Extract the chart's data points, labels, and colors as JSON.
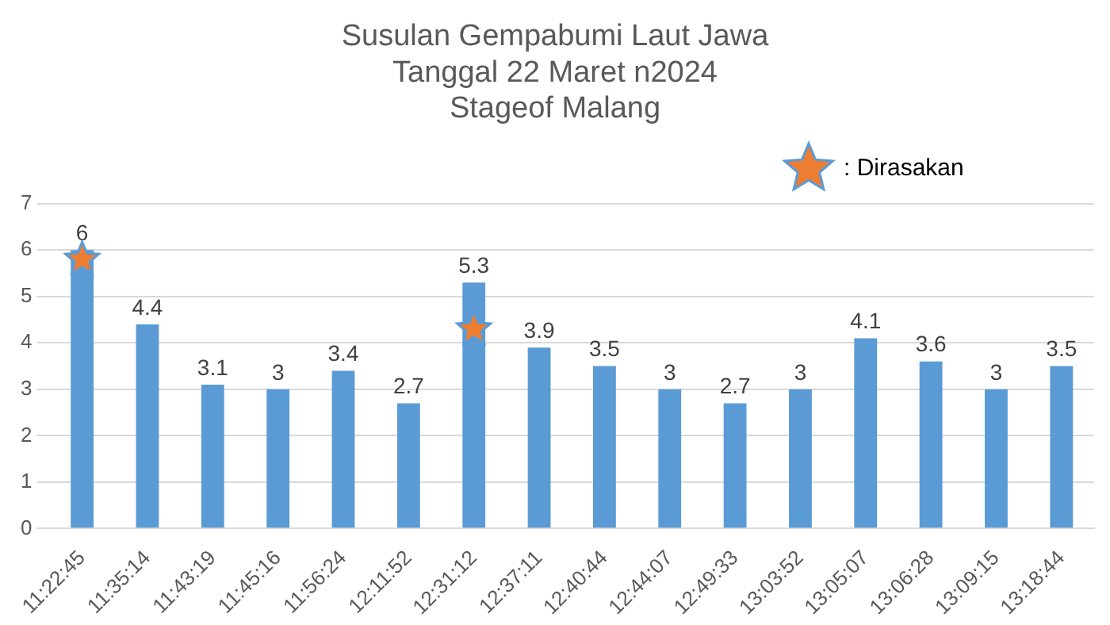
{
  "chart_data": {
    "type": "bar",
    "title": "Susulan Gempabumi Laut Jawa\nTanggal 22 Maret n2024\nStageof Malang",
    "categories": [
      "11:22:45",
      "11:35:14",
      "11:43:19",
      "11:45:16",
      "11:56:24",
      "12:11:52",
      "12:31:12",
      "12:37:11",
      "12:40:44",
      "12:44:07",
      "12:49:33",
      "13:03:52",
      "13:05:07",
      "13:06:28",
      "13:09:15",
      "13:18:44"
    ],
    "series": [
      {
        "color": "#5b9bd5",
        "values": [
          6,
          4.4,
          3.1,
          3,
          3.4,
          2.7,
          5.3,
          3.9,
          3.5,
          3,
          2.7,
          3,
          4.1,
          3.6,
          3,
          3.5
        ],
        "value_labels": [
          "6",
          "4.4",
          "3.1",
          "3",
          "3.4",
          "2.7",
          "5.3",
          "3.9",
          "3.5",
          "3",
          "2.7",
          "3",
          "4.1",
          "3.6",
          "3",
          "3.5"
        ]
      },
      {
        "type": "scatter",
        "name": ": Dirasakan",
        "color": "#ed7d31",
        "marker": "star",
        "values": [
          5.8,
          null,
          null,
          null,
          null,
          null,
          4.3,
          null,
          null,
          null,
          null,
          null,
          null,
          null,
          null,
          null
        ]
      }
    ],
    "ylim": [
      0,
      7
    ],
    "yticks": [
      0,
      1,
      2,
      3,
      4,
      5,
      6,
      7
    ],
    "grid": "y",
    "legend": "top right"
  }
}
